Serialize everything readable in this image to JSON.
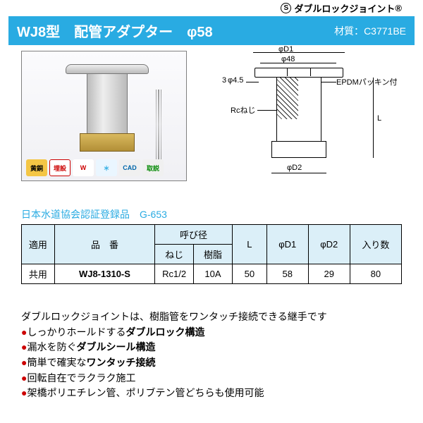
{
  "brand": {
    "logo_letter": "S",
    "name": "ダブルロックジョイント",
    "reg": "®"
  },
  "header": {
    "title": "WJ8型　配管アダプター　φ58",
    "material_label": "材質：",
    "material": "C3771BE",
    "bg": "#29abe2",
    "fg": "#ffffff"
  },
  "photo": {
    "badges": [
      {
        "text": "黄銅",
        "bg": "#f4c645",
        "fg": "#000"
      },
      {
        "text": "埋設",
        "bg": "#ffffff",
        "fg": "#c00",
        "ring": "#c00"
      },
      {
        "text": "W",
        "bg": "#ffffff",
        "fg": "#c00"
      },
      {
        "text": "＊",
        "bg": "#eaf6ff",
        "fg": "#29abe2"
      },
      {
        "text": "CAD",
        "bg": "#f0f0f0",
        "fg": "#0066aa"
      },
      {
        "text": "取説",
        "bg": "#f0f0f0",
        "fg": "#008800"
      }
    ]
  },
  "diagram": {
    "labels": {
      "d1": "φD1",
      "d48": "φ48",
      "holes": "3",
      "hole_dia": "φ4.5",
      "epdm": "EPDMパッキン付",
      "rc": "Rcねじ",
      "L": "L",
      "d2": "φD2"
    }
  },
  "cert": "日本水道協会認証登録品　G-653",
  "table": {
    "headers": {
      "apply": "適用",
      "part_no": "品　番",
      "yobi": "呼び径",
      "thread": "ねじ",
      "resin": "樹脂",
      "L": "L",
      "d1": "φD1",
      "d2": "φD2",
      "qty": "入り数"
    },
    "row": {
      "apply": "共用",
      "part_no": "WJ8-1310-S",
      "thread": "Rc1/2",
      "resin": "10A",
      "L": "50",
      "d1": "58",
      "d2": "29",
      "qty": "80"
    },
    "header_bg": "#dbeff8"
  },
  "desc": {
    "intro": "ダブルロックジョイントは、樹脂管をワンタッチ接続できる継手です",
    "bullets": [
      {
        "pre": "しっかりホールドする",
        "bold": "ダブルロック構造"
      },
      {
        "pre": "漏水を防ぐ",
        "bold": "ダブルシール構造"
      },
      {
        "pre": "簡単で確実な",
        "bold": "ワンタッチ接続"
      },
      {
        "pre": "回転自在でラクラク施工",
        "bold": ""
      },
      {
        "pre": "架橋ポリエチレン管、ポリブテン管どちらも使用可能",
        "bold": ""
      }
    ],
    "bullet_color": "#cc0000"
  }
}
